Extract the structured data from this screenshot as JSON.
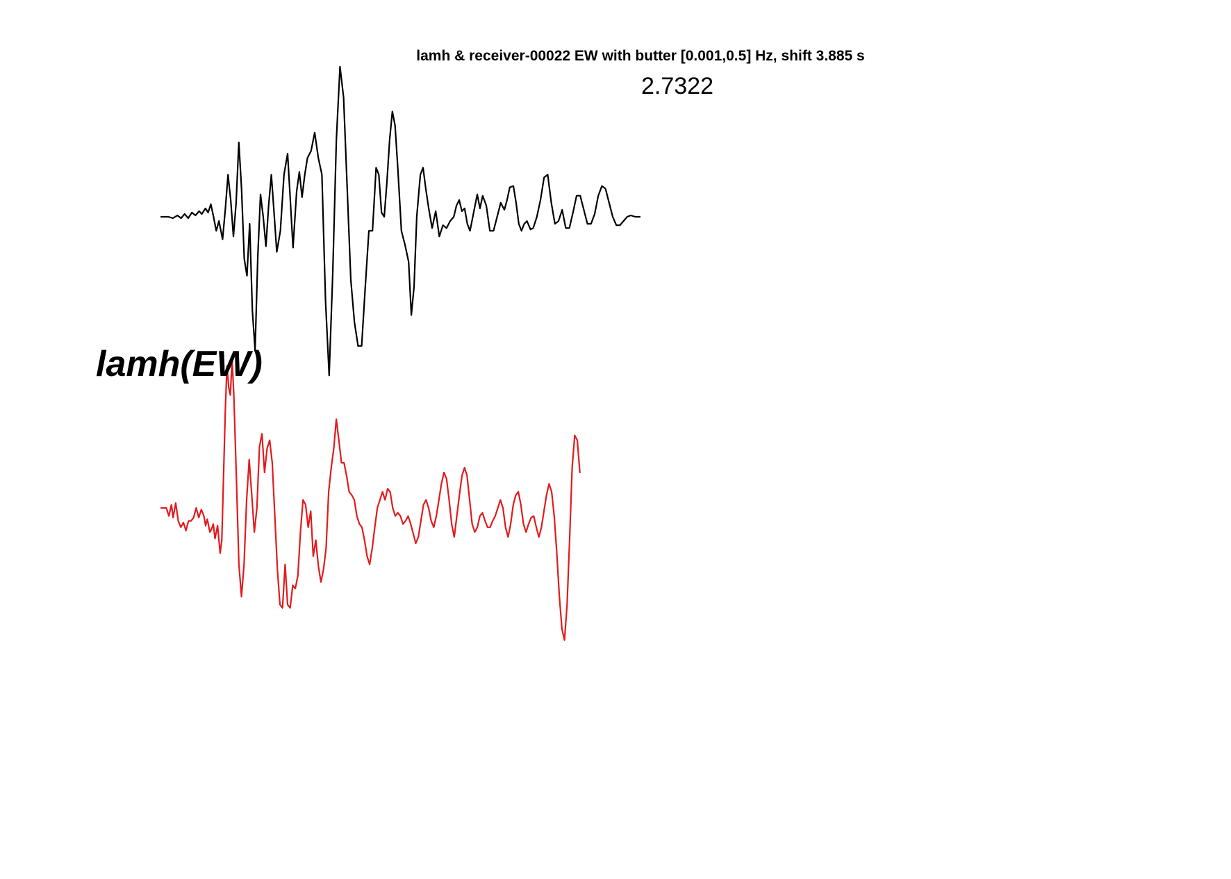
{
  "chart_data": {
    "type": "line",
    "title": "lamh & receiver-00022 EW with butter [0.001,0.5] Hz, shift 3.885 s",
    "annotation": "2.7322",
    "station_label": "lamh(EW)",
    "xlabel": "",
    "ylabel": "",
    "grid": false,
    "axes_visible": false,
    "series": [
      {
        "color": "#000000",
        "points": [
          [
            0.0,
            0.0
          ],
          [
            0.8,
            0.0
          ],
          [
            1.3,
            -0.01
          ],
          [
            1.8,
            0.01
          ],
          [
            2.2,
            -0.01
          ],
          [
            2.6,
            0.02
          ],
          [
            3.0,
            -0.01
          ],
          [
            3.4,
            0.03
          ],
          [
            3.8,
            0.01
          ],
          [
            4.2,
            0.04
          ],
          [
            4.5,
            0.02
          ],
          [
            4.9,
            0.06
          ],
          [
            5.2,
            0.03
          ],
          [
            5.5,
            0.09
          ],
          [
            5.8,
            0.0
          ],
          [
            6.1,
            -0.1
          ],
          [
            6.4,
            -0.03
          ],
          [
            6.8,
            -0.16
          ],
          [
            7.1,
            0.05
          ],
          [
            7.4,
            0.3
          ],
          [
            7.7,
            0.12
          ],
          [
            8.0,
            -0.14
          ],
          [
            8.3,
            0.1
          ],
          [
            8.6,
            0.53
          ],
          [
            8.9,
            0.2
          ],
          [
            9.2,
            -0.3
          ],
          [
            9.5,
            -0.42
          ],
          [
            9.8,
            -0.05
          ],
          [
            10.1,
            -0.67
          ],
          [
            10.4,
            -0.95
          ],
          [
            10.7,
            -0.28
          ],
          [
            11.0,
            0.16
          ],
          [
            11.3,
            0.0
          ],
          [
            11.6,
            -0.21
          ],
          [
            11.9,
            0.08
          ],
          [
            12.2,
            0.3
          ],
          [
            12.5,
            0.03
          ],
          [
            12.8,
            -0.25
          ],
          [
            13.2,
            -0.1
          ],
          [
            13.6,
            0.3
          ],
          [
            14.0,
            0.45
          ],
          [
            14.3,
            0.12
          ],
          [
            14.6,
            -0.22
          ],
          [
            15.0,
            0.18
          ],
          [
            15.3,
            0.32
          ],
          [
            15.6,
            0.14
          ],
          [
            15.9,
            0.3
          ],
          [
            16.2,
            0.42
          ],
          [
            16.6,
            0.47
          ],
          [
            17.0,
            0.6
          ],
          [
            17.4,
            0.42
          ],
          [
            17.8,
            0.3
          ],
          [
            18.2,
            -0.6
          ],
          [
            18.6,
            -1.13
          ],
          [
            19.0,
            -0.4
          ],
          [
            19.4,
            0.55
          ],
          [
            19.8,
            1.07
          ],
          [
            20.2,
            0.85
          ],
          [
            20.6,
            0.2
          ],
          [
            21.0,
            -0.45
          ],
          [
            21.4,
            -0.75
          ],
          [
            21.8,
            -0.92
          ],
          [
            22.2,
            -0.92
          ],
          [
            22.6,
            -0.5
          ],
          [
            23.0,
            -0.1
          ],
          [
            23.4,
            -0.1
          ],
          [
            23.8,
            0.35
          ],
          [
            24.1,
            0.3
          ],
          [
            24.4,
            0.03
          ],
          [
            24.7,
            0.0
          ],
          [
            25.0,
            0.25
          ],
          [
            25.3,
            0.55
          ],
          [
            25.6,
            0.75
          ],
          [
            25.9,
            0.65
          ],
          [
            26.2,
            0.35
          ],
          [
            26.6,
            -0.1
          ],
          [
            27.0,
            -0.2
          ],
          [
            27.4,
            -0.32
          ],
          [
            27.7,
            -0.7
          ],
          [
            28.0,
            -0.5
          ],
          [
            28.3,
            0.0
          ],
          [
            28.7,
            0.3
          ],
          [
            29.0,
            0.35
          ],
          [
            29.3,
            0.2
          ],
          [
            29.6,
            0.07
          ],
          [
            30.0,
            -0.08
          ],
          [
            30.4,
            0.04
          ],
          [
            30.8,
            -0.14
          ],
          [
            31.2,
            -0.06
          ],
          [
            31.6,
            -0.08
          ],
          [
            32.0,
            -0.03
          ],
          [
            32.4,
            0.0
          ],
          [
            32.7,
            0.08
          ],
          [
            33.0,
            0.12
          ],
          [
            33.3,
            0.04
          ],
          [
            33.6,
            0.06
          ],
          [
            33.9,
            -0.05
          ],
          [
            34.2,
            -0.1
          ],
          [
            34.6,
            0.03
          ],
          [
            35.0,
            0.16
          ],
          [
            35.3,
            0.06
          ],
          [
            35.6,
            0.15
          ],
          [
            36.0,
            0.08
          ],
          [
            36.4,
            -0.1
          ],
          [
            36.8,
            -0.1
          ],
          [
            37.2,
            0.0
          ],
          [
            37.6,
            0.1
          ],
          [
            38.0,
            0.05
          ],
          [
            38.3,
            0.12
          ],
          [
            38.6,
            0.21
          ],
          [
            39.0,
            0.22
          ],
          [
            39.3,
            0.1
          ],
          [
            39.6,
            -0.05
          ],
          [
            39.9,
            -0.1
          ],
          [
            40.2,
            -0.05
          ],
          [
            40.5,
            -0.03
          ],
          [
            40.9,
            -0.09
          ],
          [
            41.2,
            -0.08
          ],
          [
            41.6,
            0.0
          ],
          [
            42.0,
            0.12
          ],
          [
            42.4,
            0.28
          ],
          [
            42.8,
            0.3
          ],
          [
            43.2,
            0.1
          ],
          [
            43.6,
            -0.05
          ],
          [
            44.0,
            -0.03
          ],
          [
            44.4,
            0.05
          ],
          [
            44.8,
            -0.08
          ],
          [
            45.2,
            -0.08
          ],
          [
            45.6,
            0.03
          ],
          [
            46.0,
            0.15
          ],
          [
            46.4,
            0.15
          ],
          [
            46.8,
            0.05
          ],
          [
            47.2,
            -0.05
          ],
          [
            47.6,
            -0.05
          ],
          [
            48.0,
            0.02
          ],
          [
            48.4,
            0.15
          ],
          [
            48.8,
            0.22
          ],
          [
            49.2,
            0.2
          ],
          [
            49.6,
            0.1
          ],
          [
            50.0,
            0.0
          ],
          [
            50.4,
            -0.06
          ],
          [
            50.8,
            -0.06
          ],
          [
            51.2,
            -0.03
          ],
          [
            51.6,
            0.0
          ],
          [
            52.0,
            0.01
          ],
          [
            52.5,
            0.0
          ],
          [
            53.0,
            0.0
          ]
        ]
      },
      {
        "color": "#e31a1c",
        "points": [
          [
            0.0,
            0.0
          ],
          [
            0.6,
            0.0
          ],
          [
            0.9,
            -0.05
          ],
          [
            1.2,
            0.02
          ],
          [
            1.4,
            -0.06
          ],
          [
            1.7,
            0.03
          ],
          [
            2.0,
            -0.08
          ],
          [
            2.3,
            -0.12
          ],
          [
            2.6,
            -0.09
          ],
          [
            2.9,
            -0.14
          ],
          [
            3.2,
            -0.08
          ],
          [
            3.5,
            -0.08
          ],
          [
            3.8,
            -0.06
          ],
          [
            4.1,
            0.0
          ],
          [
            4.4,
            -0.06
          ],
          [
            4.7,
            -0.01
          ],
          [
            5.0,
            -0.05
          ],
          [
            5.2,
            -0.11
          ],
          [
            5.4,
            -0.07
          ],
          [
            5.7,
            -0.15
          ],
          [
            5.9,
            -0.13
          ],
          [
            6.1,
            -0.1
          ],
          [
            6.3,
            -0.19
          ],
          [
            6.6,
            -0.11
          ],
          [
            6.9,
            -0.28
          ],
          [
            7.1,
            -0.2
          ],
          [
            7.3,
            0.2
          ],
          [
            7.5,
            0.6
          ],
          [
            7.7,
            0.88
          ],
          [
            7.9,
            0.75
          ],
          [
            8.1,
            0.7
          ],
          [
            8.3,
            0.92
          ],
          [
            8.5,
            0.7
          ],
          [
            8.8,
            0.2
          ],
          [
            9.1,
            -0.35
          ],
          [
            9.4,
            -0.55
          ],
          [
            9.7,
            -0.35
          ],
          [
            10.0,
            0.05
          ],
          [
            10.3,
            0.3
          ],
          [
            10.6,
            0.08
          ],
          [
            10.9,
            -0.15
          ],
          [
            11.2,
            0.0
          ],
          [
            11.5,
            0.38
          ],
          [
            11.8,
            0.46
          ],
          [
            12.1,
            0.22
          ],
          [
            12.4,
            0.37
          ],
          [
            12.7,
            0.42
          ],
          [
            13.0,
            0.28
          ],
          [
            13.3,
            -0.05
          ],
          [
            13.6,
            -0.38
          ],
          [
            13.9,
            -0.6
          ],
          [
            14.2,
            -0.62
          ],
          [
            14.5,
            -0.35
          ],
          [
            14.8,
            -0.6
          ],
          [
            15.1,
            -0.62
          ],
          [
            15.4,
            -0.48
          ],
          [
            15.7,
            -0.5
          ],
          [
            16.0,
            -0.42
          ],
          [
            16.3,
            -0.15
          ],
          [
            16.6,
            0.05
          ],
          [
            16.9,
            0.02
          ],
          [
            17.2,
            -0.12
          ],
          [
            17.5,
            -0.02
          ],
          [
            17.8,
            -0.3
          ],
          [
            18.1,
            -0.2
          ],
          [
            18.4,
            -0.36
          ],
          [
            18.7,
            -0.46
          ],
          [
            19.0,
            -0.38
          ],
          [
            19.3,
            -0.25
          ],
          [
            19.6,
            0.1
          ],
          [
            19.9,
            0.25
          ],
          [
            20.2,
            0.37
          ],
          [
            20.5,
            0.55
          ],
          [
            20.8,
            0.42
          ],
          [
            21.1,
            0.28
          ],
          [
            21.4,
            0.28
          ],
          [
            21.7,
            0.2
          ],
          [
            22.0,
            0.1
          ],
          [
            22.3,
            0.08
          ],
          [
            22.6,
            0.05
          ],
          [
            22.9,
            -0.05
          ],
          [
            23.2,
            -0.1
          ],
          [
            23.5,
            -0.12
          ],
          [
            23.8,
            -0.2
          ],
          [
            24.1,
            -0.3
          ],
          [
            24.4,
            -0.35
          ],
          [
            24.7,
            -0.25
          ],
          [
            25.0,
            -0.12
          ],
          [
            25.3,
            0.0
          ],
          [
            25.6,
            0.05
          ],
          [
            25.9,
            0.1
          ],
          [
            26.2,
            0.05
          ],
          [
            26.5,
            0.12
          ],
          [
            26.8,
            0.1
          ],
          [
            27.1,
            0.0
          ],
          [
            27.4,
            -0.05
          ],
          [
            27.7,
            -0.03
          ],
          [
            28.0,
            -0.05
          ],
          [
            28.3,
            -0.1
          ],
          [
            28.6,
            -0.08
          ],
          [
            28.9,
            -0.05
          ],
          [
            29.2,
            -0.1
          ],
          [
            29.5,
            -0.16
          ],
          [
            29.8,
            -0.22
          ],
          [
            30.1,
            -0.18
          ],
          [
            30.4,
            -0.08
          ],
          [
            30.7,
            0.02
          ],
          [
            31.0,
            0.05
          ],
          [
            31.3,
            0.0
          ],
          [
            31.6,
            -0.08
          ],
          [
            31.9,
            -0.12
          ],
          [
            32.2,
            -0.05
          ],
          [
            32.5,
            0.05
          ],
          [
            32.8,
            0.15
          ],
          [
            33.1,
            0.22
          ],
          [
            33.4,
            0.18
          ],
          [
            33.7,
            0.05
          ],
          [
            34.0,
            -0.1
          ],
          [
            34.3,
            -0.18
          ],
          [
            34.6,
            -0.05
          ],
          [
            34.9,
            0.08
          ],
          [
            35.2,
            0.2
          ],
          [
            35.5,
            0.25
          ],
          [
            35.8,
            0.2
          ],
          [
            36.1,
            0.05
          ],
          [
            36.4,
            -0.1
          ],
          [
            36.7,
            -0.15
          ],
          [
            37.0,
            -0.12
          ],
          [
            37.3,
            -0.05
          ],
          [
            37.6,
            -0.03
          ],
          [
            37.9,
            -0.08
          ],
          [
            38.2,
            -0.12
          ],
          [
            38.5,
            -0.12
          ],
          [
            38.8,
            -0.08
          ],
          [
            39.1,
            -0.05
          ],
          [
            39.4,
            0.0
          ],
          [
            39.7,
            0.05
          ],
          [
            40.0,
            0.0
          ],
          [
            40.3,
            -0.12
          ],
          [
            40.6,
            -0.18
          ],
          [
            40.9,
            -0.1
          ],
          [
            41.2,
            0.02
          ],
          [
            41.5,
            0.08
          ],
          [
            41.8,
            0.1
          ],
          [
            42.1,
            0.02
          ],
          [
            42.4,
            -0.1
          ],
          [
            42.7,
            -0.15
          ],
          [
            43.0,
            -0.1
          ],
          [
            43.3,
            -0.06
          ],
          [
            43.6,
            -0.05
          ],
          [
            43.9,
            -0.12
          ],
          [
            44.2,
            -0.18
          ],
          [
            44.5,
            -0.12
          ],
          [
            44.8,
            -0.02
          ],
          [
            45.1,
            0.08
          ],
          [
            45.4,
            0.15
          ],
          [
            45.7,
            0.1
          ],
          [
            46.0,
            -0.05
          ],
          [
            46.3,
            -0.28
          ],
          [
            46.6,
            -0.55
          ],
          [
            46.9,
            -0.75
          ],
          [
            47.2,
            -0.82
          ],
          [
            47.5,
            -0.6
          ],
          [
            47.8,
            -0.2
          ],
          [
            48.1,
            0.25
          ],
          [
            48.4,
            0.45
          ],
          [
            48.7,
            0.42
          ],
          [
            49.0,
            0.22
          ]
        ]
      }
    ]
  }
}
